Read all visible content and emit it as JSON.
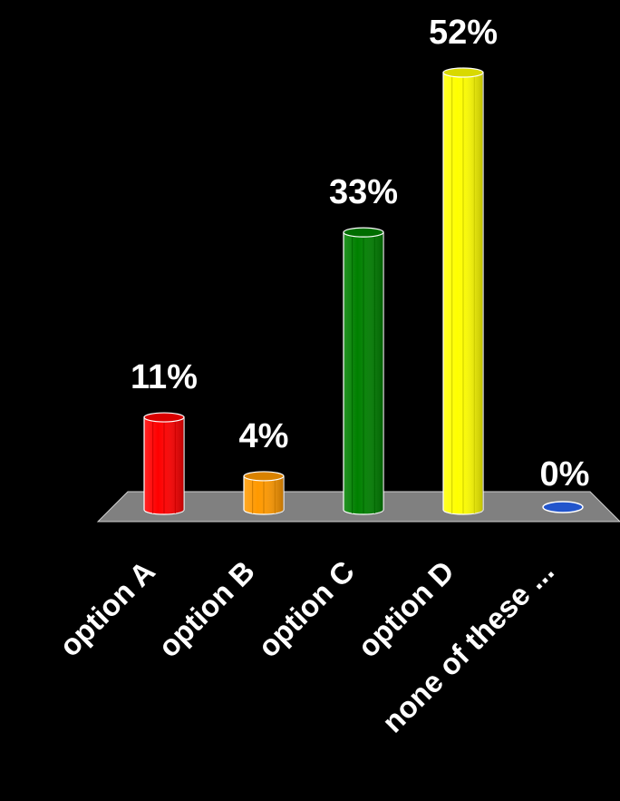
{
  "chart_data": {
    "type": "bar",
    "categories": [
      "option A",
      "option B",
      "option C",
      "option D",
      "none of these ..."
    ],
    "values": [
      11,
      4,
      33,
      52,
      0
    ],
    "value_labels": [
      "11%",
      "4%",
      "33%",
      "52%",
      "0%"
    ],
    "colors": [
      "#ff0000",
      "#ff9900",
      "#008000",
      "#ffff00",
      "#2255cc"
    ],
    "ylim": [
      0,
      52
    ],
    "grid": false,
    "legend": "none",
    "floor_color": "#808080",
    "background": "#000000"
  }
}
